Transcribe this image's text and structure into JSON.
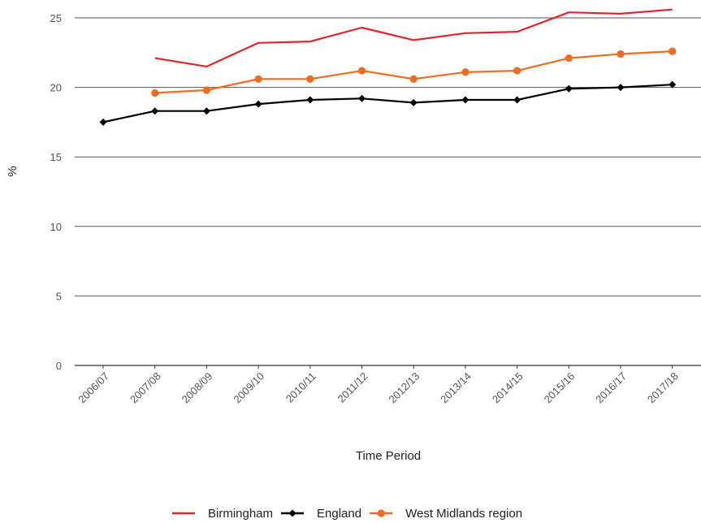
{
  "chart_data": {
    "type": "line",
    "xlabel": "Time Period",
    "ylabel": "%",
    "ylim": [
      0,
      25
    ],
    "yticks": [
      0,
      5,
      10,
      15,
      20,
      25
    ],
    "grid": true,
    "legend_position": "bottom",
    "categories": [
      "2006/07",
      "2007/08",
      "2008/09",
      "2009/10",
      "2010/11",
      "2011/12",
      "2012/13",
      "2013/14",
      "2014/15",
      "2015/16",
      "2016/17",
      "2017/18"
    ],
    "series": [
      {
        "name": "Birmingham",
        "color": "#e0262c",
        "marker": "none",
        "values": [
          null,
          22.1,
          21.5,
          23.2,
          23.3,
          24.3,
          23.4,
          23.9,
          24.0,
          25.4,
          25.3,
          25.6
        ]
      },
      {
        "name": "England",
        "color": "#000000",
        "marker": "diamond",
        "values": [
          17.5,
          18.3,
          18.3,
          18.8,
          19.1,
          19.2,
          18.9,
          19.1,
          19.1,
          19.9,
          20.0,
          20.2
        ]
      },
      {
        "name": "West Midlands region",
        "color": "#f26b21",
        "marker": "circle",
        "values": [
          null,
          19.6,
          19.8,
          20.6,
          20.6,
          21.2,
          20.6,
          21.1,
          21.2,
          22.1,
          22.4,
          22.6
        ]
      }
    ]
  }
}
